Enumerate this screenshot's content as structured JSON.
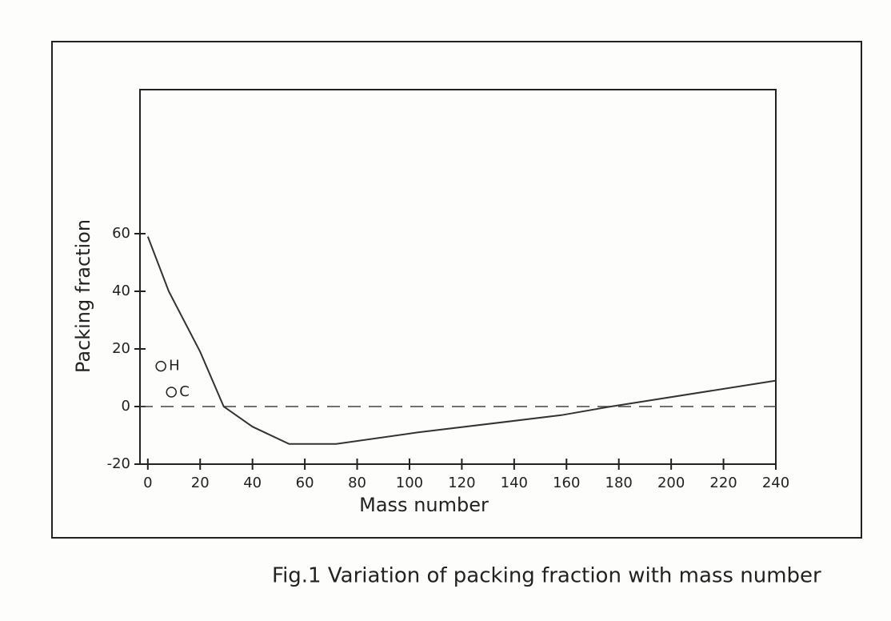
{
  "chart_data": {
    "type": "line",
    "caption": "Fig.1 Variation of packing fraction with mass number",
    "x_label": "Mass number",
    "y_label": "Packing fraction",
    "x": [
      0,
      8,
      20,
      29,
      40,
      54,
      72,
      103,
      158,
      177,
      240
    ],
    "values": [
      59,
      40,
      19,
      0,
      -7,
      -13,
      -13,
      -9,
      -3,
      0,
      9
    ],
    "color": "#333333",
    "xlim": [
      -3,
      240
    ],
    "ylim": [
      -20,
      110
    ],
    "xticks": [
      0,
      20,
      40,
      60,
      80,
      100,
      120,
      140,
      160,
      180,
      200,
      220,
      240
    ],
    "yticks": [
      -20,
      0,
      20,
      40,
      60
    ],
    "reference_line": 0,
    "annotations": [
      {
        "text": "H",
        "x": 5,
        "y": 14
      },
      {
        "text": "C",
        "x": 9,
        "y": 5
      }
    ]
  }
}
